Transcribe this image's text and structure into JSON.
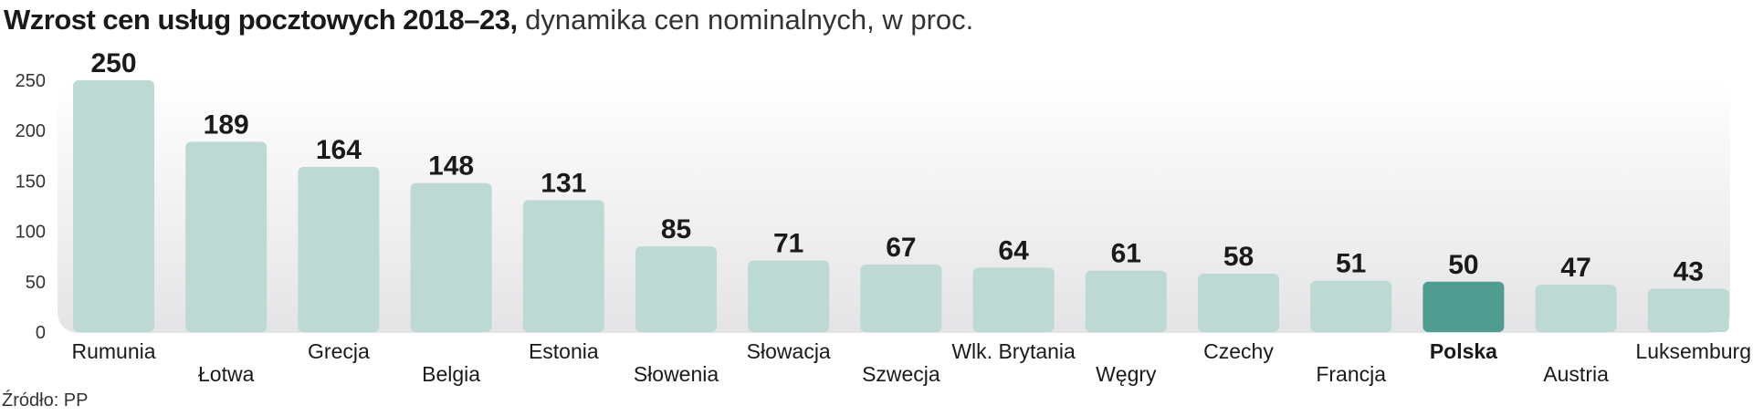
{
  "title": {
    "bold": "Wzrost cen usług pocztowych 2018–23,",
    "rest": " dynamika cen nominalnych, w proc."
  },
  "source": "Źródło: PP",
  "colors": {
    "bar": "#bdd9d3",
    "highlight": "#4f9c90",
    "panel_top": "#ffffff",
    "panel_bottom": "#e4e4e6"
  },
  "chart_data": {
    "type": "bar",
    "categories": [
      "Rumunia",
      "Łotwa",
      "Grecja",
      "Belgia",
      "Estonia",
      "Słowenia",
      "Słowacja",
      "Szwecja",
      "Wlk. Brytania",
      "Węgry",
      "Czechy",
      "Francja",
      "Polska",
      "Austria",
      "Luksemburg"
    ],
    "values": [
      250,
      189,
      164,
      148,
      131,
      85,
      71,
      67,
      64,
      61,
      58,
      51,
      50,
      47,
      43
    ],
    "highlight": "Polska",
    "yticks": [
      0,
      50,
      100,
      150,
      200,
      250
    ],
    "ylim": [
      0,
      250
    ],
    "grid": false
  }
}
